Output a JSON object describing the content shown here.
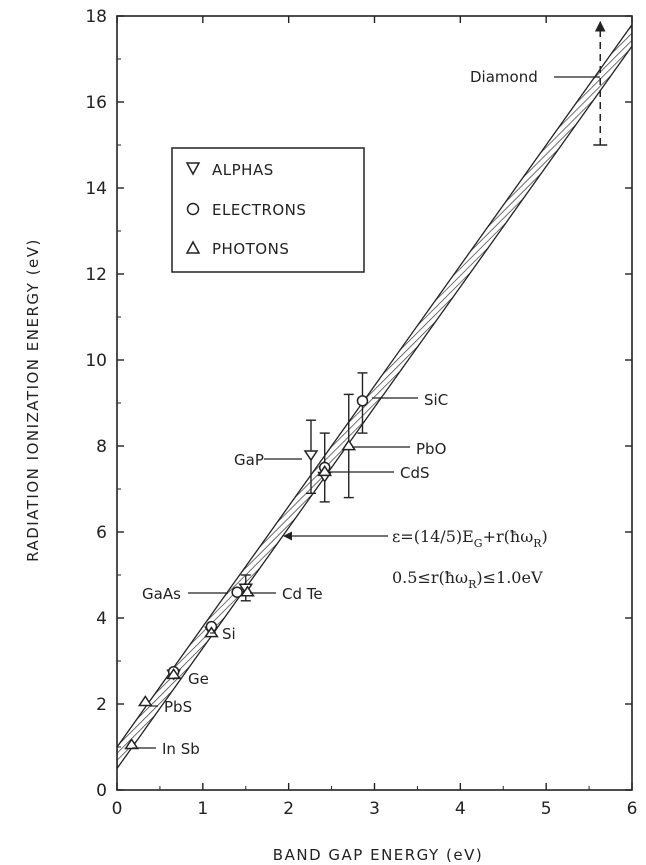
{
  "chart_data": {
    "type": "scatter",
    "title": "",
    "xlabel": "BAND GAP ENERGY (eV)",
    "ylabel": "RADIATION IONIZATION ENERGY (eV)",
    "xlim": [
      0,
      6
    ],
    "ylim": [
      0,
      18
    ],
    "x_ticks": [
      "0",
      "1",
      "2",
      "3",
      "4",
      "5",
      "6"
    ],
    "y_ticks": [
      "0",
      "2",
      "4",
      "6",
      "8",
      "10",
      "12",
      "14",
      "16",
      "18"
    ],
    "grid": false,
    "legend": {
      "position": "upper-left",
      "entries": [
        {
          "marker": "triangle-down",
          "label": "ALPHAS"
        },
        {
          "marker": "circle",
          "label": "ELECTRONS"
        },
        {
          "marker": "triangle-up",
          "label": "PHOTONS"
        }
      ]
    },
    "band": {
      "description": "shaded band of the relation",
      "slope": 2.8,
      "intercept_low": 0.5,
      "intercept_high": 1.0
    },
    "equation": {
      "line1": "ε=(14/5)E_G+r(ħω_R)",
      "line1_prefix": "ε=(14/5)E",
      "line1_sub1": "G",
      "line1_mid": "+r(ħω",
      "line1_sub2": "R",
      "line1_suffix": ")",
      "line2": "0.5≤r(ħω_R)≤1.0eV",
      "line2_prefix": "0.5≤r(ħω",
      "line2_sub": "R",
      "line2_suffix": ")≤1.0eV",
      "pointer_at": {
        "x": 2.25,
        "y": 5.9
      }
    },
    "series": [
      {
        "marker": "triangle-down",
        "points": [
          {
            "label": "GaP",
            "x": 2.26,
            "y": 7.8,
            "err_low": 6.9,
            "err_high": 8.6
          },
          {
            "label": "CdS",
            "x": 2.42,
            "y": 7.3,
            "err_low": 6.7,
            "err_high": 8.3
          },
          {
            "label": "CdTe",
            "x": 1.5,
            "y": 4.7,
            "err_low": 4.4,
            "err_high": 5.0
          },
          {
            "label": "Si",
            "x": 1.1,
            "y": 3.7
          },
          {
            "label": "Ge",
            "x": 0.66,
            "y": 2.7
          }
        ]
      },
      {
        "marker": "circle",
        "points": [
          {
            "label": "SiC",
            "x": 2.86,
            "y": 9.05,
            "err_low": 8.3,
            "err_high": 9.7
          },
          {
            "label": "CdS",
            "x": 2.42,
            "y": 7.5
          },
          {
            "label": "GaAs",
            "x": 1.4,
            "y": 4.6
          },
          {
            "label": "Si",
            "x": 1.1,
            "y": 3.8
          },
          {
            "label": "Ge",
            "x": 0.66,
            "y": 2.75
          }
        ]
      },
      {
        "marker": "triangle-up",
        "points": [
          {
            "label": "PbO",
            "x": 2.7,
            "y": 8.0,
            "err_low": 6.8,
            "err_high": 9.2
          },
          {
            "label": "CdS",
            "x": 2.42,
            "y": 7.4
          },
          {
            "label": "CdTe",
            "x": 1.52,
            "y": 4.6
          },
          {
            "label": "Si",
            "x": 1.1,
            "y": 3.65
          },
          {
            "label": "Ge",
            "x": 0.66,
            "y": 2.68
          },
          {
            "label": "PbS",
            "x": 0.33,
            "y": 2.05
          },
          {
            "label": "InSb",
            "x": 0.17,
            "y": 1.05
          }
        ]
      },
      {
        "marker": "none",
        "points": [
          {
            "label": "Diamond",
            "x": 5.63,
            "err_low": 15.0,
            "err_high": 18.0
          }
        ]
      }
    ],
    "annotations": [
      {
        "text": "Diamond",
        "x": 5.63,
        "y": 16.6
      },
      {
        "text": "SiC",
        "x": 2.86,
        "y": 9.05
      },
      {
        "text": "PbO",
        "x": 2.7,
        "y": 8.0
      },
      {
        "text": "GaP",
        "x": 2.26,
        "y": 7.8
      },
      {
        "text": "CdS",
        "x": 2.42,
        "y": 7.4
      },
      {
        "text": "GaAs",
        "x": 1.4,
        "y": 4.6
      },
      {
        "text": "Cd Te",
        "x": 1.52,
        "y": 4.6
      },
      {
        "text": "Si",
        "x": 1.1,
        "y": 3.7
      },
      {
        "text": "Ge",
        "x": 0.66,
        "y": 2.7
      },
      {
        "text": "PbS",
        "x": 0.33,
        "y": 2.05
      },
      {
        "text": "In Sb",
        "x": 0.17,
        "y": 1.05
      }
    ]
  }
}
